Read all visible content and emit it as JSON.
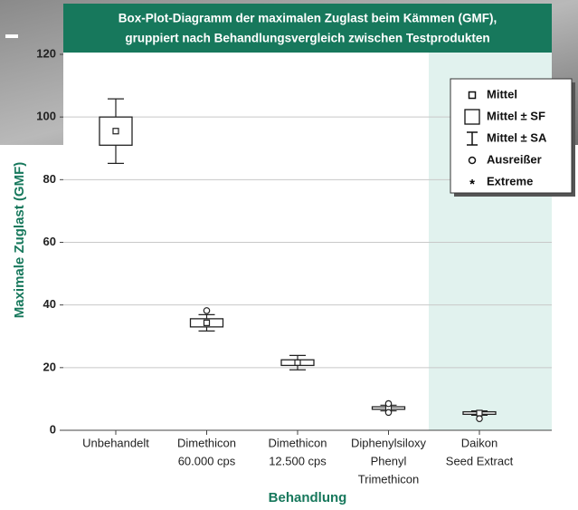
{
  "chart_data": {
    "type": "box",
    "title": [
      "Box-Plot-Diagramm der maximalen Zuglast beim Kämmen (GMF),",
      "gruppiert nach Behandlungsvergleich zwischen Testprodukten"
    ],
    "x_label": "Behandlung",
    "y_label": "Maximale Zuglast (GMF)",
    "categories": [
      [
        "Unbehandelt"
      ],
      [
        "Dimethicon",
        "60.000 cps"
      ],
      [
        "Dimethicon",
        "12.500 cps"
      ],
      [
        "Diphenylsiloxy",
        "Phenyl",
        "Trimethicon"
      ],
      [
        "Daikon",
        "Seed Extract"
      ]
    ],
    "series": [
      {
        "mean": 95.5,
        "se": 4.5,
        "sd": 10.3,
        "outliers": []
      },
      {
        "mean": 34.3,
        "se": 1.3,
        "sd": 2.6,
        "outliers": [
          38.2
        ]
      },
      {
        "mean": 21.6,
        "se": 0.9,
        "sd": 2.3,
        "outliers": []
      },
      {
        "mean": 7.1,
        "se": 0.4,
        "sd": 0.9,
        "outliers": [
          5.7,
          8.5
        ]
      },
      {
        "mean": 5.5,
        "se": 0.4,
        "sd": 0.7,
        "outliers": [
          3.7
        ]
      }
    ],
    "legend": [
      "Mittel",
      "Mittel ± SF",
      "Mittel ± SA",
      "Ausreißer",
      "Extreme"
    ],
    "ylim": [
      0,
      120
    ],
    "yticks": [
      0,
      20,
      40,
      60,
      80,
      100,
      120
    ],
    "grid": true,
    "highlight_category": 4,
    "title_color": "#17785c",
    "highlight_color": "#e1f2ee"
  }
}
